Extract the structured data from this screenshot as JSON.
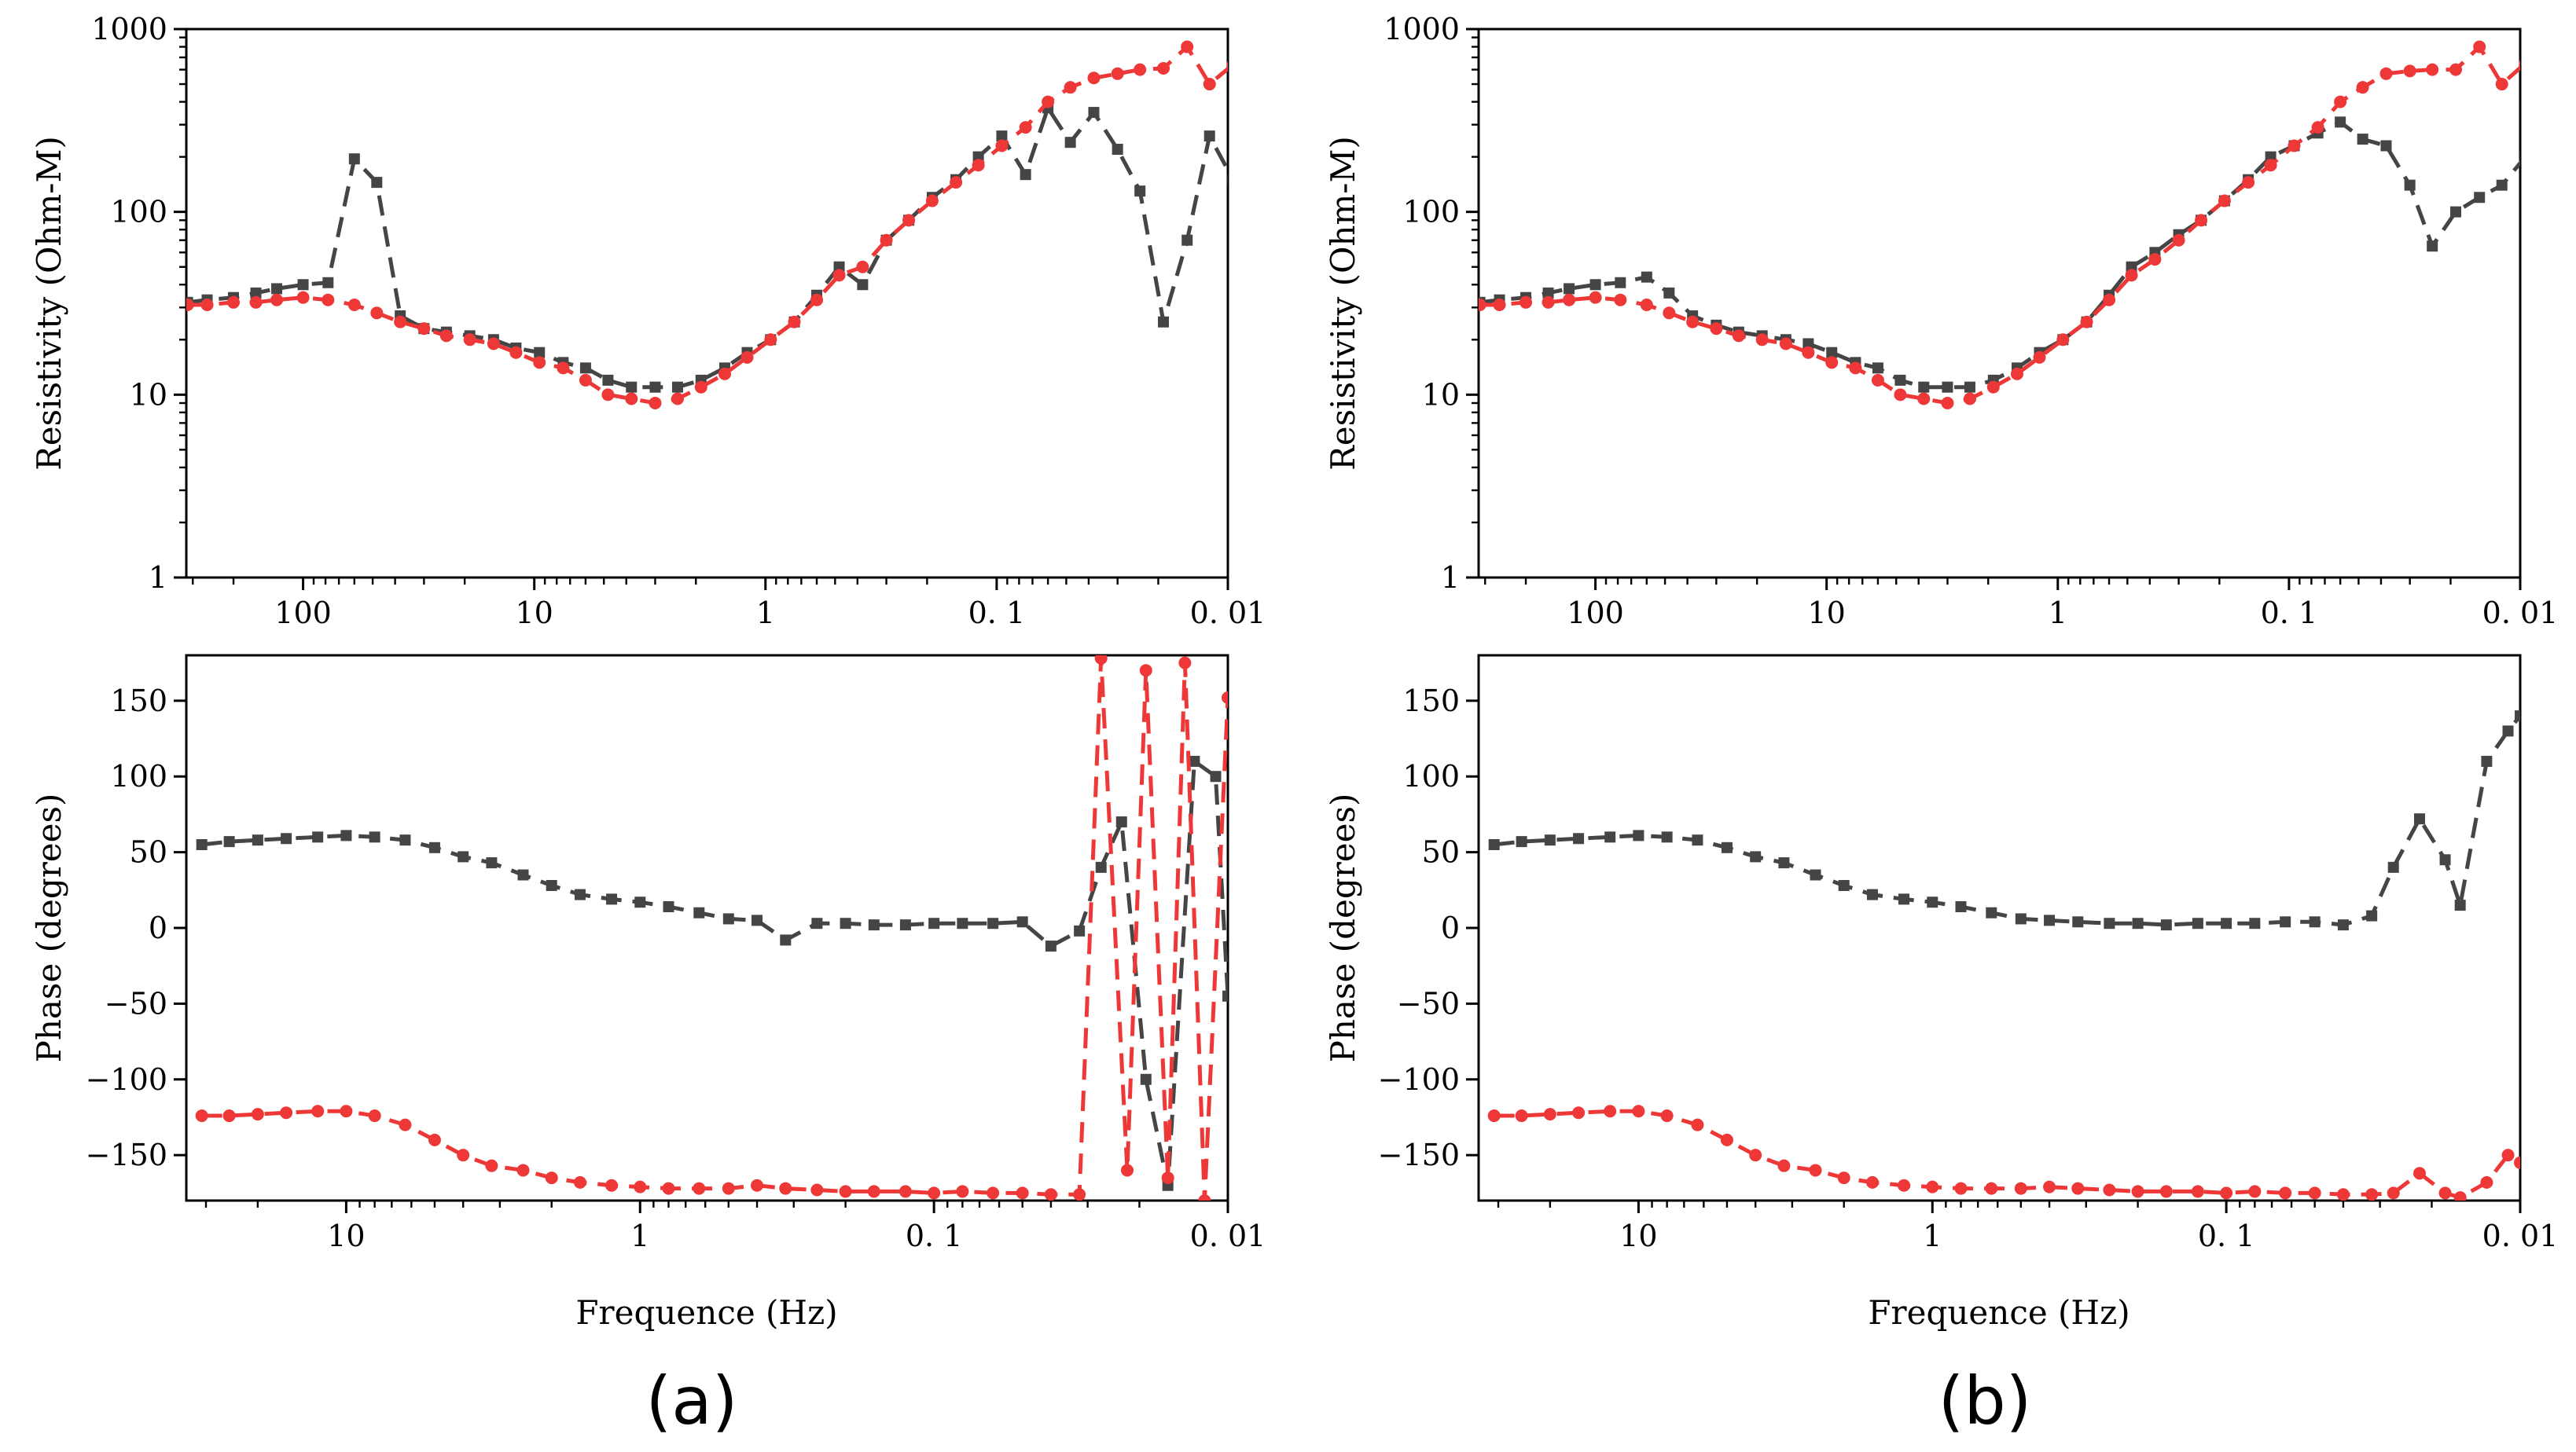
{
  "colors": {
    "observed": "#454545",
    "fitted": "#ee3838",
    "axis": "#000000"
  },
  "tick_labels": {
    "resistivity_y": [
      "1",
      "10",
      "100",
      "1000"
    ],
    "resistivity_x": [
      "100",
      "10",
      "1",
      "0. 1",
      "0. 01"
    ],
    "phase_y": [
      "150",
      "100",
      "50",
      "0",
      "−50",
      "−100",
      "−150"
    ],
    "phase_x": [
      "10",
      "1",
      "0. 1",
      "0. 01"
    ]
  },
  "chart_data": [
    {
      "type": "line",
      "panel": "a",
      "position": "top",
      "title": "",
      "xlabel": "",
      "ylabel": "Resistivity (Ohm-M)",
      "xscale": "log-reversed",
      "yscale": "log",
      "xlim": [
        320,
        0.01
      ],
      "ylim": [
        1,
        1000
      ],
      "grid": false,
      "series": [
        {
          "name": "observed",
          "marker": "square",
          "x": [
            316,
            260,
            200,
            160,
            130,
            100,
            78,
            60,
            48,
            38,
            30,
            24,
            19,
            15,
            12,
            9.5,
            7.5,
            6,
            4.8,
            3.8,
            3,
            2.4,
            1.9,
            1.5,
            1.2,
            0.95,
            0.75,
            0.6,
            0.48,
            0.38,
            0.3,
            0.24,
            0.19,
            0.15,
            0.12,
            0.095,
            0.075,
            0.06,
            0.048,
            0.038,
            0.03,
            0.024,
            0.019,
            0.015,
            0.012,
            0.0095
          ],
          "y": [
            32,
            33,
            34,
            36,
            38,
            40,
            41,
            195,
            145,
            27,
            23,
            22,
            21,
            20,
            18,
            17,
            15,
            14,
            12,
            11,
            11,
            11,
            12,
            14,
            17,
            20,
            25,
            35,
            50,
            40,
            70,
            90,
            120,
            150,
            200,
            260,
            160,
            370,
            240,
            350,
            220,
            130,
            25,
            70,
            260,
            150
          ]
        },
        {
          "name": "fitted",
          "marker": "circle",
          "x": [
            316,
            260,
            200,
            160,
            130,
            100,
            78,
            60,
            48,
            38,
            30,
            24,
            19,
            15,
            12,
            9.5,
            7.5,
            6,
            4.8,
            3.8,
            3,
            2.4,
            1.9,
            1.5,
            1.2,
            0.95,
            0.75,
            0.6,
            0.48,
            0.38,
            0.3,
            0.24,
            0.19,
            0.15,
            0.12,
            0.095,
            0.075,
            0.06,
            0.048,
            0.038,
            0.03,
            0.024,
            0.019,
            0.015,
            0.012,
            0.0095
          ],
          "y": [
            31,
            31,
            32,
            32,
            33,
            34,
            33,
            31,
            28,
            25,
            23,
            21,
            20,
            19,
            17,
            15,
            14,
            12,
            10,
            9.5,
            9,
            9.5,
            11,
            13,
            16,
            20,
            25,
            33,
            45,
            50,
            70,
            90,
            115,
            145,
            180,
            230,
            290,
            400,
            480,
            540,
            570,
            600,
            610,
            800,
            500,
            640
          ]
        }
      ]
    },
    {
      "type": "line",
      "panel": "a",
      "position": "bottom",
      "title": "",
      "xlabel": "Frequence (Hz)",
      "ylabel": "Phase (degrees)",
      "xscale": "log-reversed",
      "yscale": "linear",
      "xlim": [
        35,
        0.01
      ],
      "ylim": [
        -180,
        180
      ],
      "grid": false,
      "series": [
        {
          "name": "observed",
          "marker": "square",
          "x": [
            31,
            25,
            20,
            16,
            12.5,
            10,
            8,
            6.3,
            5,
            4,
            3.2,
            2.5,
            2,
            1.6,
            1.25,
            1,
            0.8,
            0.63,
            0.5,
            0.4,
            0.32,
            0.25,
            0.2,
            0.16,
            0.125,
            0.1,
            0.08,
            0.063,
            0.05,
            0.04,
            0.032,
            0.027,
            0.023,
            0.019,
            0.016,
            0.013,
            0.011,
            0.01
          ],
          "y": [
            55,
            57,
            58,
            59,
            60,
            61,
            60,
            58,
            53,
            47,
            43,
            35,
            28,
            22,
            19,
            17,
            14,
            10,
            6,
            5,
            -8,
            3,
            3,
            2,
            2,
            3,
            3,
            3,
            4,
            -12,
            -2,
            40,
            70,
            -100,
            -170,
            110,
            100,
            -45
          ]
        },
        {
          "name": "fitted",
          "marker": "circle",
          "x": [
            31,
            25,
            20,
            16,
            12.5,
            10,
            8,
            6.3,
            5,
            4,
            3.2,
            2.5,
            2,
            1.6,
            1.25,
            1,
            0.8,
            0.63,
            0.5,
            0.4,
            0.32,
            0.25,
            0.2,
            0.16,
            0.125,
            0.1,
            0.08,
            0.063,
            0.05,
            0.04,
            0.032,
            0.027,
            0.022,
            0.019,
            0.016,
            0.014,
            0.012,
            0.01
          ],
          "y": [
            -124,
            -124,
            -123,
            -122,
            -121,
            -121,
            -124,
            -130,
            -140,
            -150,
            -157,
            -160,
            -165,
            -168,
            -170,
            -171,
            -172,
            -172,
            -172,
            -170,
            -172,
            -173,
            -174,
            -174,
            -174,
            -175,
            -174,
            -175,
            -175,
            -176,
            -176,
            178,
            -160,
            170,
            -165,
            175,
            -180,
            152
          ]
        }
      ]
    },
    {
      "type": "line",
      "panel": "b",
      "position": "top",
      "title": "",
      "xlabel": "",
      "ylabel": "Resistivity (Ohm-M)",
      "xscale": "log-reversed",
      "yscale": "log",
      "xlim": [
        320,
        0.01
      ],
      "ylim": [
        1,
        1000
      ],
      "grid": false,
      "series": [
        {
          "name": "observed",
          "marker": "square",
          "x": [
            316,
            260,
            200,
            160,
            130,
            100,
            78,
            60,
            48,
            38,
            30,
            24,
            19,
            15,
            12,
            9.5,
            7.5,
            6,
            4.8,
            3.8,
            3,
            2.4,
            1.9,
            1.5,
            1.2,
            0.95,
            0.75,
            0.6,
            0.48,
            0.38,
            0.3,
            0.24,
            0.19,
            0.15,
            0.12,
            0.095,
            0.075,
            0.06,
            0.048,
            0.038,
            0.03,
            0.024,
            0.019,
            0.015,
            0.012,
            0.0095
          ],
          "y": [
            32,
            33,
            34,
            36,
            38,
            40,
            41,
            44,
            36,
            27,
            24,
            22,
            21,
            20,
            19,
            17,
            15,
            14,
            12,
            11,
            11,
            11,
            12,
            14,
            17,
            20,
            25,
            35,
            50,
            60,
            75,
            90,
            115,
            150,
            200,
            230,
            270,
            310,
            250,
            230,
            140,
            65,
            100,
            120,
            140,
            200
          ]
        },
        {
          "name": "fitted",
          "marker": "circle",
          "x": [
            316,
            260,
            200,
            160,
            130,
            100,
            78,
            60,
            48,
            38,
            30,
            24,
            19,
            15,
            12,
            9.5,
            7.5,
            6,
            4.8,
            3.8,
            3,
            2.4,
            1.9,
            1.5,
            1.2,
            0.95,
            0.75,
            0.6,
            0.48,
            0.38,
            0.3,
            0.24,
            0.19,
            0.15,
            0.12,
            0.095,
            0.075,
            0.06,
            0.048,
            0.038,
            0.03,
            0.024,
            0.019,
            0.015,
            0.012,
            0.0095
          ],
          "y": [
            31,
            31,
            32,
            32,
            33,
            34,
            33,
            31,
            28,
            25,
            23,
            21,
            20,
            19,
            17,
            15,
            14,
            12,
            10,
            9.5,
            9,
            9.5,
            11,
            13,
            16,
            20,
            25,
            33,
            45,
            55,
            70,
            90,
            115,
            145,
            180,
            230,
            290,
            400,
            480,
            570,
            590,
            600,
            600,
            800,
            500,
            650
          ]
        }
      ]
    },
    {
      "type": "line",
      "panel": "b",
      "position": "bottom",
      "title": "",
      "xlabel": "Frequence (Hz)",
      "ylabel": "Phase (degrees)",
      "xscale": "log-reversed",
      "yscale": "linear",
      "xlim": [
        35,
        0.01
      ],
      "ylim": [
        -180,
        180
      ],
      "grid": false,
      "series": [
        {
          "name": "observed",
          "marker": "square",
          "x": [
            31,
            25,
            20,
            16,
            12.5,
            10,
            8,
            6.3,
            5,
            4,
            3.2,
            2.5,
            2,
            1.6,
            1.25,
            1,
            0.8,
            0.63,
            0.5,
            0.4,
            0.32,
            0.25,
            0.2,
            0.16,
            0.125,
            0.1,
            0.08,
            0.063,
            0.05,
            0.04,
            0.032,
            0.027,
            0.022,
            0.018,
            0.016,
            0.013,
            0.011,
            0.01
          ],
          "y": [
            55,
            57,
            58,
            59,
            60,
            61,
            60,
            58,
            53,
            47,
            43,
            35,
            28,
            22,
            19,
            17,
            14,
            10,
            6,
            5,
            4,
            3,
            3,
            2,
            3,
            3,
            3,
            4,
            4,
            2,
            8,
            40,
            72,
            45,
            15,
            110,
            130,
            140
          ]
        },
        {
          "name": "fitted",
          "marker": "circle",
          "x": [
            31,
            25,
            20,
            16,
            12.5,
            10,
            8,
            6.3,
            5,
            4,
            3.2,
            2.5,
            2,
            1.6,
            1.25,
            1,
            0.8,
            0.63,
            0.5,
            0.4,
            0.32,
            0.25,
            0.2,
            0.16,
            0.125,
            0.1,
            0.08,
            0.063,
            0.05,
            0.04,
            0.032,
            0.027,
            0.022,
            0.018,
            0.016,
            0.013,
            0.011,
            0.01
          ],
          "y": [
            -124,
            -124,
            -123,
            -122,
            -121,
            -121,
            -124,
            -130,
            -140,
            -150,
            -157,
            -160,
            -165,
            -168,
            -170,
            -171,
            -172,
            -172,
            -172,
            -171,
            -172,
            -173,
            -174,
            -174,
            -174,
            -175,
            -174,
            -175,
            -175,
            -176,
            -176,
            -175,
            -162,
            -175,
            -178,
            -168,
            -150,
            -155
          ]
        }
      ]
    }
  ],
  "panel_labels": [
    "(a)",
    "(b)"
  ]
}
